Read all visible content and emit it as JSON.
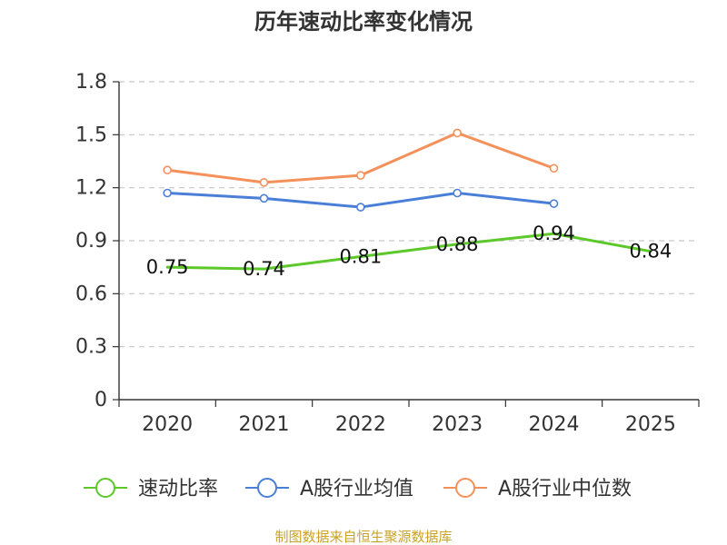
{
  "chart_data": {
    "type": "line",
    "title": "历年速动比率变化情况",
    "categories": [
      "2020",
      "2021",
      "2022",
      "2023",
      "2024",
      "2025"
    ],
    "y_ticks": [
      "0",
      "0.3",
      "0.6",
      "0.9",
      "1.2",
      "1.5",
      "1.8"
    ],
    "ylim": [
      0,
      1.8
    ],
    "grid": true,
    "legend_position": "bottom",
    "series": [
      {
        "name": "速动比率",
        "color": "#5cc82a",
        "values": [
          0.75,
          0.74,
          0.81,
          0.88,
          0.94,
          0.84
        ],
        "labels": [
          "0.75",
          "0.74",
          "0.81",
          "0.88",
          "0.94",
          "0.84"
        ],
        "show_points": false
      },
      {
        "name": "A股行业均值",
        "color": "#4a7fd8",
        "values": [
          1.17,
          1.14,
          1.09,
          1.17,
          1.11,
          null
        ],
        "show_points": true
      },
      {
        "name": "A股行业中位数",
        "color": "#f4905a",
        "values": [
          1.3,
          1.23,
          1.27,
          1.51,
          1.31,
          null
        ],
        "show_points": true
      }
    ]
  },
  "source": "制图数据来自恒生聚源数据库"
}
